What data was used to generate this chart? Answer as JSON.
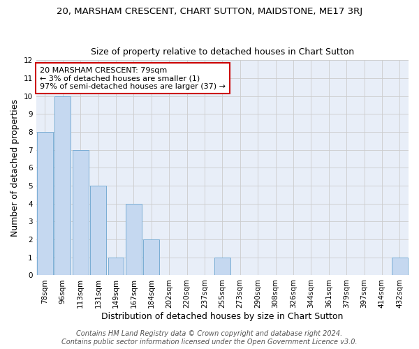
{
  "title_line1": "20, MARSHAM CRESCENT, CHART SUTTON, MAIDSTONE, ME17 3RJ",
  "title_line2": "Size of property relative to detached houses in Chart Sutton",
  "xlabel": "Distribution of detached houses by size in Chart Sutton",
  "ylabel": "Number of detached properties",
  "categories": [
    "78sqm",
    "96sqm",
    "113sqm",
    "131sqm",
    "149sqm",
    "167sqm",
    "184sqm",
    "202sqm",
    "220sqm",
    "237sqm",
    "255sqm",
    "273sqm",
    "290sqm",
    "308sqm",
    "326sqm",
    "344sqm",
    "361sqm",
    "379sqm",
    "397sqm",
    "414sqm",
    "432sqm"
  ],
  "values": [
    8,
    10,
    7,
    5,
    1,
    4,
    2,
    0,
    0,
    0,
    1,
    0,
    0,
    0,
    0,
    0,
    0,
    0,
    0,
    0,
    1
  ],
  "bar_color": "#c5d8f0",
  "bar_edge_color": "#7aadd4",
  "annotation_text": "20 MARSHAM CRESCENT: 79sqm\n← 3% of detached houses are smaller (1)\n97% of semi-detached houses are larger (37) →",
  "annotation_box_color": "white",
  "annotation_box_edge_color": "#cc0000",
  "ylim": [
    0,
    12
  ],
  "yticks": [
    0,
    1,
    2,
    3,
    4,
    5,
    6,
    7,
    8,
    9,
    10,
    11,
    12
  ],
  "grid_color": "#cccccc",
  "background_color": "#e8eef8",
  "footer_line1": "Contains HM Land Registry data © Crown copyright and database right 2024.",
  "footer_line2": "Contains public sector information licensed under the Open Government Licence v3.0.",
  "title_fontsize": 9.5,
  "subtitle_fontsize": 9,
  "axis_label_fontsize": 9,
  "tick_fontsize": 7.5,
  "annotation_fontsize": 8,
  "footer_fontsize": 7
}
